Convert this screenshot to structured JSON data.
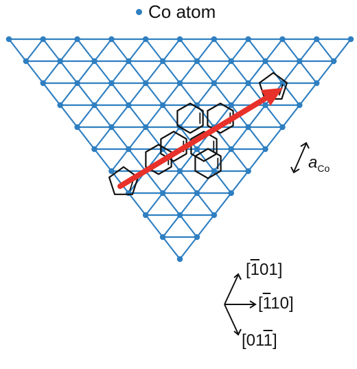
{
  "legend": {
    "label": "Co atom"
  },
  "lattice_constant": {
    "symbol": "a",
    "subscript": "Co"
  },
  "directions": [
    {
      "pre": "[",
      "bar": "1",
      "post": "01]"
    },
    {
      "pre": "[",
      "bar": "1",
      "post": "10]"
    },
    {
      "pre": "[01",
      "bar": "1",
      "post": "]"
    }
  ],
  "colors": {
    "lattice": "#2f7fc1",
    "arrow": "#e8312a",
    "molecule": "#111111"
  }
}
